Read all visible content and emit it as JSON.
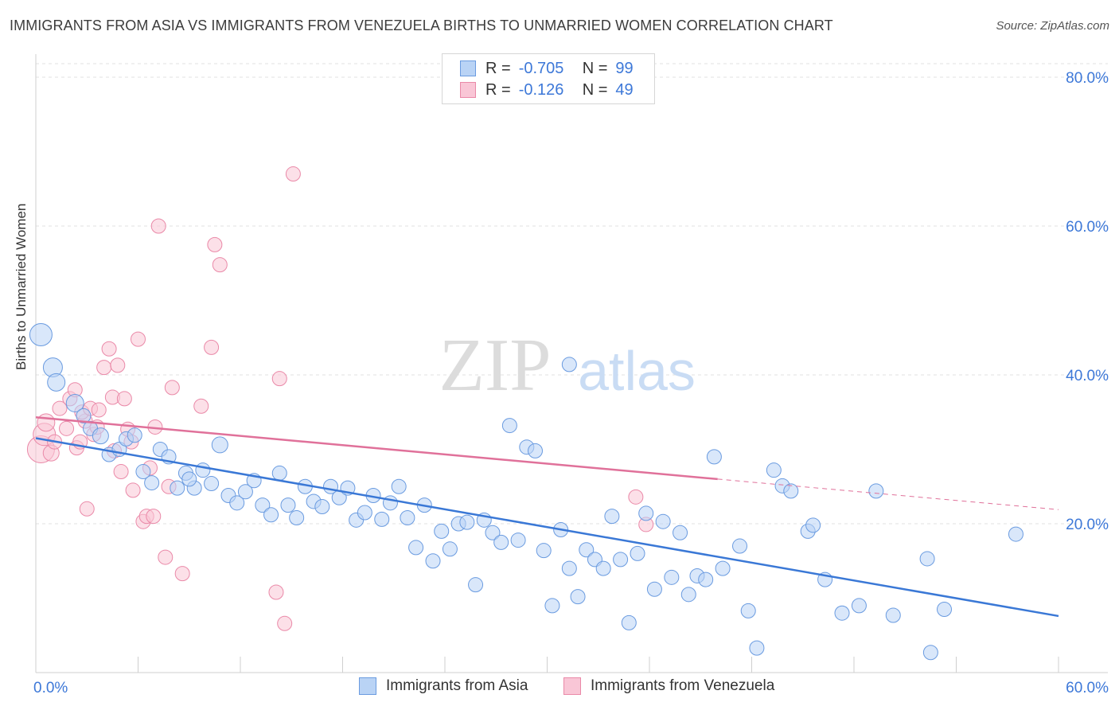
{
  "title": "IMMIGRANTS FROM ASIA VS IMMIGRANTS FROM VENEZUELA BIRTHS TO UNMARRIED WOMEN CORRELATION CHART",
  "source": "Source: ZipAtlas.com",
  "watermark": {
    "zip": "ZIP",
    "atlas": "atlas"
  },
  "colors": {
    "blue": "#6a9be0",
    "blue_fill": "#b9d3f5",
    "blue_line": "#3a78d6",
    "pink": "#ea89a8",
    "pink_fill": "#f9c6d6",
    "pink_line": "#e0719a",
    "axis_text": "#3d78d8"
  },
  "legend": {
    "asia": {
      "r_label": "R =",
      "r_value": "-0.705",
      "n_label": "N =",
      "n_value": "99"
    },
    "venezuela": {
      "r_label": "R =",
      "r_value": "-0.126",
      "n_label": "N =",
      "n_value": "49"
    }
  },
  "chart_data": {
    "type": "scatter",
    "title": "IMMIGRANTS FROM ASIA VS IMMIGRANTS FROM VENEZUELA BIRTHS TO UNMARRIED WOMEN CORRELATION CHART",
    "xlabel": "",
    "ylabel": "Births to Unmarried Women",
    "xlim": [
      0,
      60
    ],
    "ylim": [
      0,
      80
    ],
    "x_tick_labels": [
      "0.0%",
      "60.0%"
    ],
    "y_tick_labels": [
      "20.0%",
      "40.0%",
      "60.0%",
      "80.0%"
    ],
    "y_ticks": [
      20,
      40,
      60,
      80
    ],
    "series": [
      {
        "name": "Immigrants from Asia",
        "color": "#6a9be0",
        "trend": {
          "x": [
            0,
            60
          ],
          "y": [
            31.5,
            7.6
          ]
        },
        "points": [
          [
            0.3,
            45.4,
            14
          ],
          [
            1.0,
            41.0,
            12
          ],
          [
            1.2,
            39.0,
            11
          ],
          [
            2.3,
            36.2,
            11
          ],
          [
            3.2,
            32.8,
            9
          ],
          [
            2.8,
            34.5,
            9
          ],
          [
            3.8,
            31.8,
            10
          ],
          [
            4.3,
            29.3,
            9
          ],
          [
            4.9,
            30.0,
            9
          ],
          [
            5.3,
            31.4,
            9
          ],
          [
            5.8,
            31.9,
            9
          ],
          [
            6.3,
            27.0,
            9
          ],
          [
            6.8,
            25.5,
            9
          ],
          [
            7.3,
            30.0,
            9
          ],
          [
            7.8,
            29.0,
            9
          ],
          [
            8.3,
            24.8,
            9
          ],
          [
            8.8,
            26.8,
            9
          ],
          [
            9.3,
            24.8,
            9
          ],
          [
            9.8,
            27.2,
            9
          ],
          [
            10.3,
            25.4,
            9
          ],
          [
            10.8,
            30.6,
            10
          ],
          [
            11.3,
            23.8,
            9
          ],
          [
            11.8,
            22.8,
            9
          ],
          [
            12.3,
            24.3,
            9
          ],
          [
            12.8,
            25.8,
            9
          ],
          [
            13.3,
            22.5,
            9
          ],
          [
            13.8,
            21.2,
            9
          ],
          [
            14.3,
            26.8,
            9
          ],
          [
            14.8,
            22.5,
            9
          ],
          [
            15.3,
            20.8,
            9
          ],
          [
            15.8,
            25.0,
            9
          ],
          [
            16.3,
            23.0,
            9
          ],
          [
            16.8,
            22.3,
            9
          ],
          [
            17.3,
            25.0,
            9
          ],
          [
            17.8,
            23.5,
            9
          ],
          [
            18.3,
            24.8,
            9
          ],
          [
            18.8,
            20.5,
            9
          ],
          [
            19.3,
            21.5,
            9
          ],
          [
            19.8,
            23.8,
            9
          ],
          [
            20.3,
            20.6,
            9
          ],
          [
            20.8,
            22.8,
            9
          ],
          [
            21.3,
            25.0,
            9
          ],
          [
            21.8,
            20.8,
            9
          ],
          [
            22.3,
            16.8,
            9
          ],
          [
            22.8,
            22.5,
            9
          ],
          [
            23.3,
            15.0,
            9
          ],
          [
            23.8,
            19.0,
            9
          ],
          [
            24.3,
            16.6,
            9
          ],
          [
            24.8,
            20.0,
            9
          ],
          [
            25.3,
            20.2,
            9
          ],
          [
            25.8,
            11.8,
            9
          ],
          [
            26.3,
            20.5,
            9
          ],
          [
            26.8,
            18.8,
            9
          ],
          [
            27.3,
            17.5,
            9
          ],
          [
            27.8,
            33.2,
            9
          ],
          [
            28.3,
            17.8,
            9
          ],
          [
            28.8,
            30.3,
            9
          ],
          [
            29.3,
            29.8,
            9
          ],
          [
            29.8,
            16.4,
            9
          ],
          [
            30.3,
            9.0,
            9
          ],
          [
            30.8,
            19.2,
            9
          ],
          [
            31.3,
            14.0,
            9
          ],
          [
            31.8,
            10.2,
            9
          ],
          [
            32.3,
            16.5,
            9
          ],
          [
            32.8,
            15.2,
            9
          ],
          [
            33.3,
            14.0,
            9
          ],
          [
            33.8,
            21.0,
            9
          ],
          [
            34.3,
            15.2,
            9
          ],
          [
            34.8,
            6.7,
            9
          ],
          [
            35.3,
            16.0,
            9
          ],
          [
            35.8,
            21.4,
            9
          ],
          [
            36.3,
            11.2,
            9
          ],
          [
            36.8,
            20.3,
            9
          ],
          [
            37.3,
            12.8,
            9
          ],
          [
            37.8,
            18.8,
            9
          ],
          [
            38.3,
            10.5,
            9
          ],
          [
            38.8,
            13.0,
            9
          ],
          [
            39.3,
            12.5,
            9
          ],
          [
            39.8,
            29.0,
            9
          ],
          [
            40.3,
            14.0,
            9
          ],
          [
            41.3,
            17.0,
            9
          ],
          [
            41.8,
            8.3,
            9
          ],
          [
            42.3,
            3.3,
            9
          ],
          [
            43.3,
            27.2,
            9
          ],
          [
            43.8,
            25.1,
            9
          ],
          [
            44.3,
            24.4,
            9
          ],
          [
            45.3,
            19.0,
            9
          ],
          [
            45.6,
            19.8,
            9
          ],
          [
            46.3,
            12.5,
            9
          ],
          [
            47.3,
            8.0,
            9
          ],
          [
            48.3,
            9.0,
            9
          ],
          [
            49.3,
            24.4,
            9
          ],
          [
            50.3,
            7.7,
            9
          ],
          [
            52.3,
            15.3,
            9
          ],
          [
            52.5,
            2.7,
            9
          ],
          [
            53.3,
            8.5,
            9
          ],
          [
            57.5,
            18.6,
            9
          ],
          [
            31.3,
            41.4,
            9
          ],
          [
            9.0,
            26.0,
            9
          ]
        ]
      },
      {
        "name": "Immigrants from Venezuela",
        "color": "#ea89a8",
        "trend": {
          "x": [
            0,
            40
          ],
          "y": [
            34.3,
            26.0
          ]
        },
        "trend_dashed": {
          "x": [
            40,
            60
          ],
          "y": [
            26.0,
            21.9
          ]
        },
        "points": [
          [
            0.3,
            30.0,
            17
          ],
          [
            0.5,
            32.0,
            14
          ],
          [
            0.6,
            33.6,
            11
          ],
          [
            0.9,
            29.5,
            10
          ],
          [
            1.1,
            31.0,
            9
          ],
          [
            1.4,
            35.5,
            9
          ],
          [
            1.8,
            32.8,
            9
          ],
          [
            2.0,
            36.8,
            9
          ],
          [
            2.4,
            30.2,
            9
          ],
          [
            2.6,
            31.0,
            9
          ],
          [
            2.9,
            33.8,
            9
          ],
          [
            2.3,
            38.0,
            9
          ],
          [
            2.7,
            35.0,
            9
          ],
          [
            3.2,
            35.5,
            9
          ],
          [
            3.7,
            35.3,
            9
          ],
          [
            3.4,
            32.0,
            9
          ],
          [
            3.0,
            22.0,
            9
          ],
          [
            4.0,
            41.0,
            9
          ],
          [
            4.3,
            43.5,
            9
          ],
          [
            4.5,
            37.0,
            9
          ],
          [
            4.8,
            41.3,
            9
          ],
          [
            5.0,
            27.0,
            9
          ],
          [
            5.2,
            36.8,
            9
          ],
          [
            5.4,
            32.7,
            9
          ],
          [
            5.6,
            31.0,
            9
          ],
          [
            5.7,
            24.5,
            9
          ],
          [
            6.0,
            44.8,
            9
          ],
          [
            6.3,
            20.3,
            9
          ],
          [
            6.5,
            21.0,
            9
          ],
          [
            6.7,
            27.5,
            9
          ],
          [
            6.9,
            21.0,
            9
          ],
          [
            7.0,
            33.0,
            9
          ],
          [
            7.2,
            60.0,
            9
          ],
          [
            7.6,
            15.5,
            9
          ],
          [
            7.8,
            25.0,
            9
          ],
          [
            8.0,
            38.3,
            9
          ],
          [
            8.6,
            13.3,
            9
          ],
          [
            9.7,
            35.8,
            9
          ],
          [
            10.3,
            43.7,
            9
          ],
          [
            10.5,
            57.5,
            9
          ],
          [
            10.8,
            54.8,
            9
          ],
          [
            14.1,
            10.8,
            9
          ],
          [
            14.3,
            39.5,
            9
          ],
          [
            14.6,
            6.6,
            9
          ],
          [
            15.1,
            67.0,
            9
          ],
          [
            35.2,
            23.6,
            9
          ],
          [
            35.8,
            19.9,
            9
          ],
          [
            3.6,
            33.0,
            9
          ],
          [
            4.6,
            29.8,
            9
          ]
        ]
      }
    ]
  }
}
